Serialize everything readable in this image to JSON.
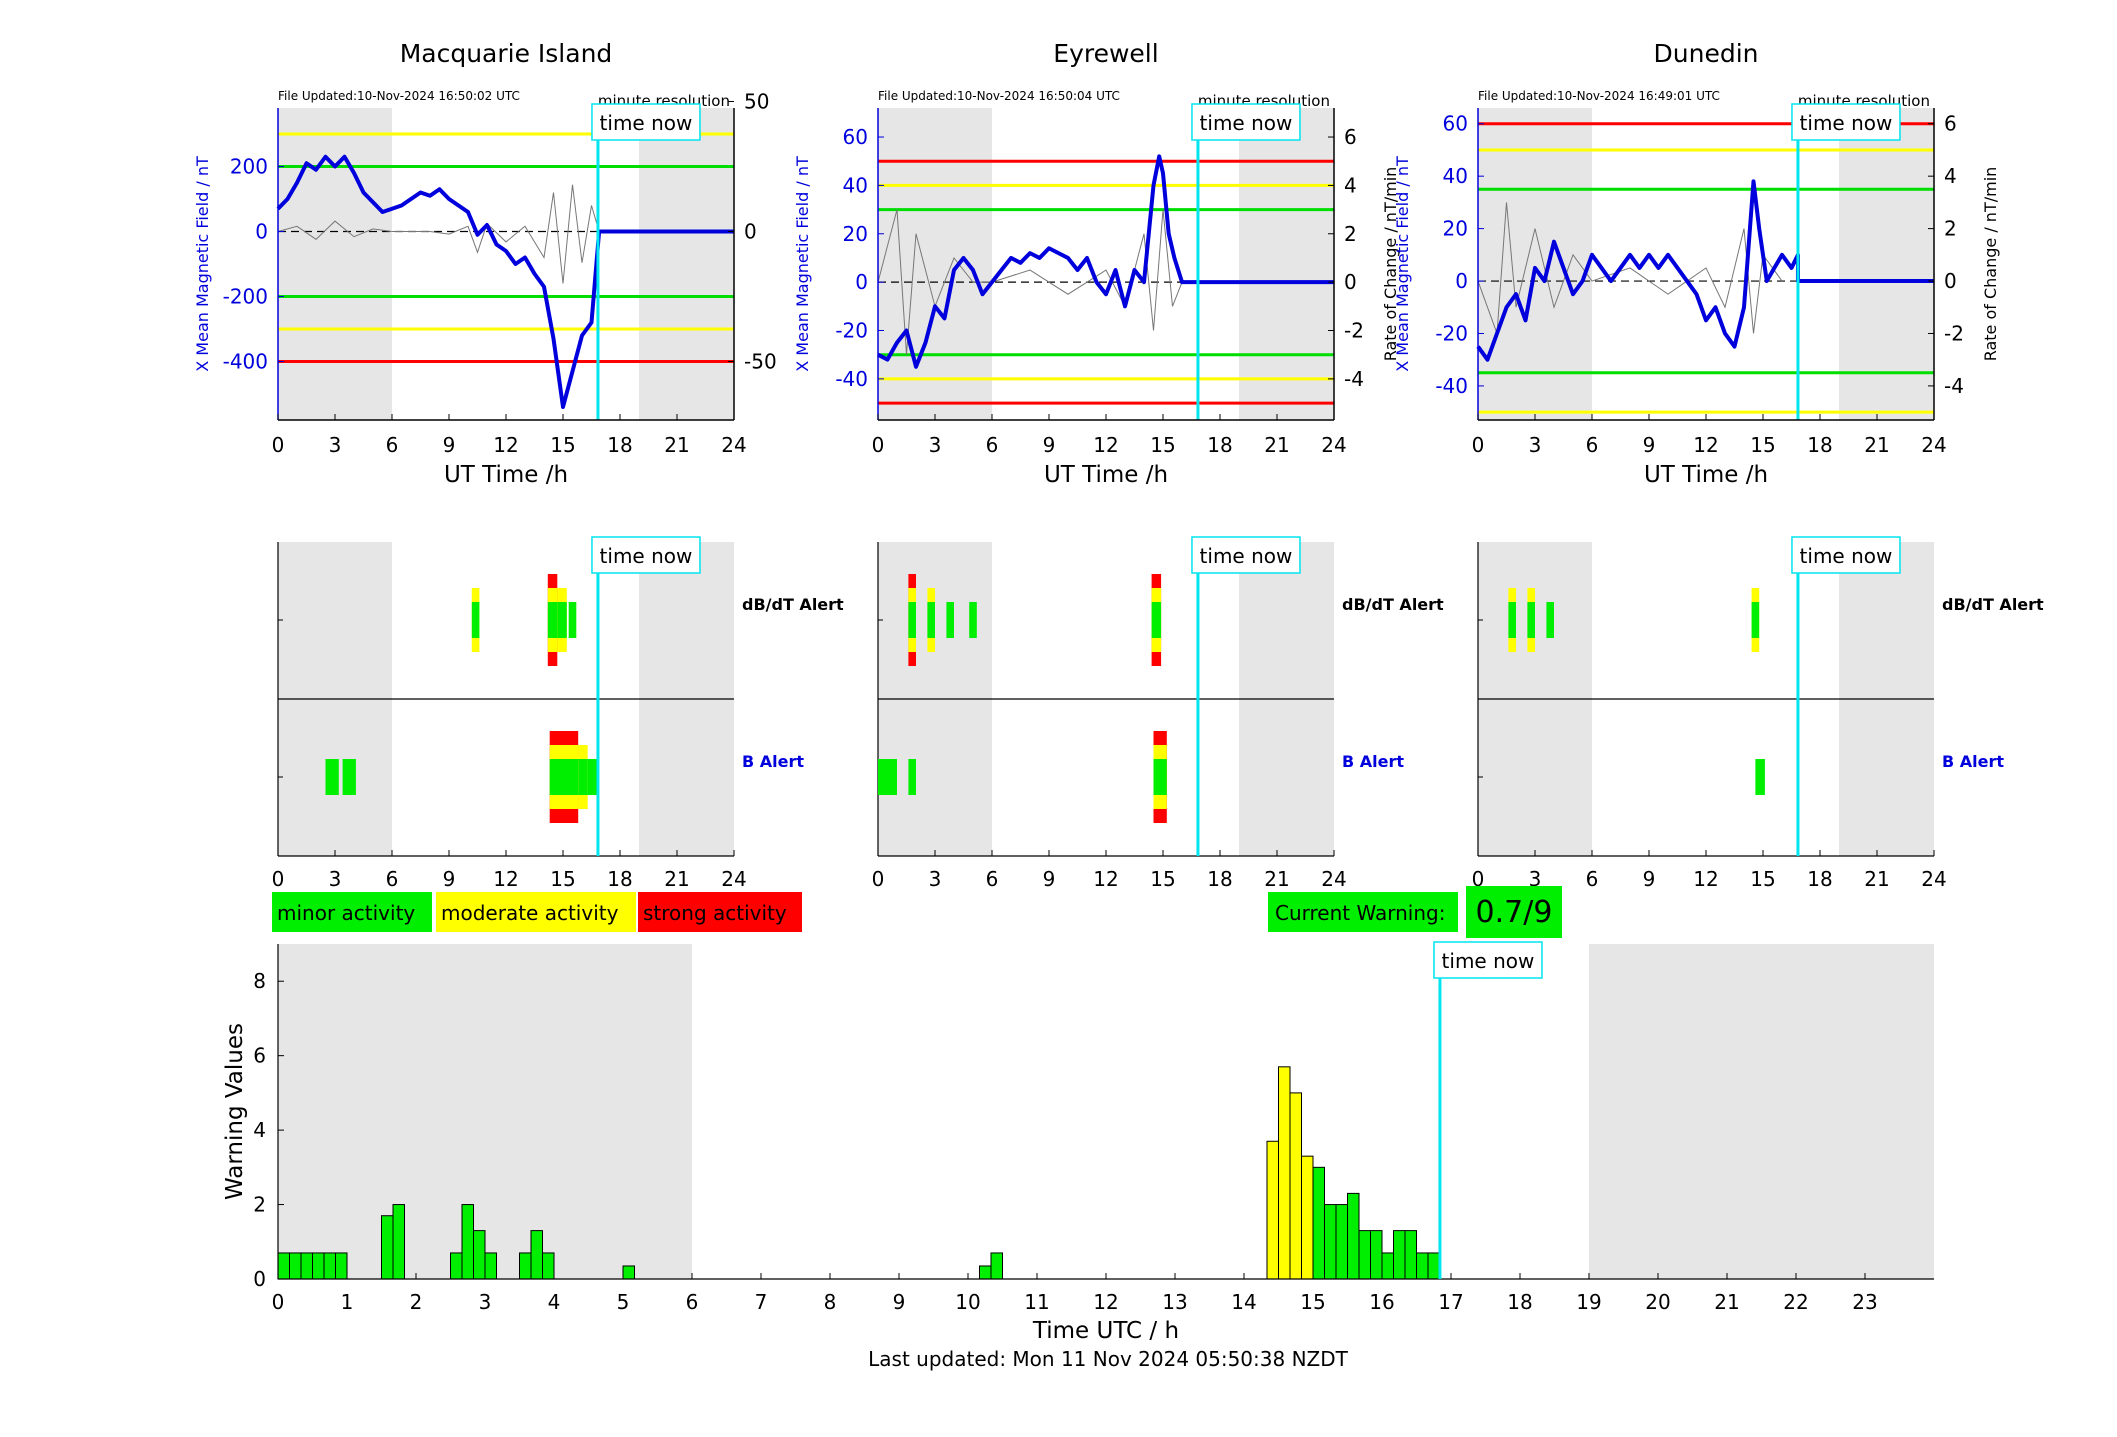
{
  "stations": [
    {
      "name": "Macquarie Island",
      "file_updated": "File Updated:10-Nov-2024 16:50:02 UTC",
      "minute_resolution_label": "minute resolution",
      "ylabel_left": "X Mean Magnetic Field / nT",
      "ylabel_right": "",
      "xlabel": "UT Time /h",
      "x_ticks": [
        0,
        3,
        6,
        9,
        12,
        15,
        18,
        21,
        24
      ],
      "left_ylim": [
        -580,
        380
      ],
      "left_ticks": [
        -400,
        -200,
        0,
        200
      ],
      "right_ylim": [
        -72.5,
        47.5
      ],
      "right_ticks": [
        -50,
        0,
        50
      ],
      "thresholds_left": [
        {
          "value": 300,
          "color": "#ffff00"
        },
        {
          "value": 200,
          "color": "#00dd00"
        },
        {
          "value": -200,
          "color": "#00dd00"
        },
        {
          "value": -300,
          "color": "#ffff00"
        },
        {
          "value": -400,
          "color": "#ff0000"
        }
      ],
      "night_shading": [
        [
          0,
          6
        ],
        [
          19,
          24
        ]
      ],
      "field_series": [
        [
          0,
          70
        ],
        [
          0.5,
          100
        ],
        [
          1,
          150
        ],
        [
          1.5,
          210
        ],
        [
          2,
          190
        ],
        [
          2.5,
          230
        ],
        [
          3,
          200
        ],
        [
          3.5,
          230
        ],
        [
          4,
          180
        ],
        [
          4.5,
          120
        ],
        [
          5,
          90
        ],
        [
          5.5,
          60
        ],
        [
          6,
          70
        ],
        [
          6.5,
          80
        ],
        [
          7,
          100
        ],
        [
          7.5,
          120
        ],
        [
          8,
          110
        ],
        [
          8.5,
          130
        ],
        [
          9,
          100
        ],
        [
          9.5,
          80
        ],
        [
          10,
          60
        ],
        [
          10.5,
          -10
        ],
        [
          11,
          20
        ],
        [
          11.5,
          -40
        ],
        [
          12,
          -60
        ],
        [
          12.5,
          -100
        ],
        [
          13,
          -80
        ],
        [
          13.5,
          -130
        ],
        [
          14,
          -170
        ],
        [
          14.5,
          -330
        ],
        [
          15,
          -540
        ],
        [
          15.5,
          -430
        ],
        [
          16,
          -320
        ],
        [
          16.5,
          -280
        ],
        [
          16.9,
          0
        ],
        [
          24,
          0
        ]
      ],
      "rate_series": [
        [
          0,
          0
        ],
        [
          1,
          2
        ],
        [
          2,
          -3
        ],
        [
          3,
          4
        ],
        [
          4,
          -2
        ],
        [
          5,
          1
        ],
        [
          6,
          0
        ],
        [
          7,
          0
        ],
        [
          8,
          0
        ],
        [
          9,
          -1
        ],
        [
          10,
          2
        ],
        [
          10.5,
          -8
        ],
        [
          11,
          3
        ],
        [
          12,
          -4
        ],
        [
          13,
          2
        ],
        [
          14,
          -10
        ],
        [
          14.5,
          15
        ],
        [
          15,
          -20
        ],
        [
          15.5,
          18
        ],
        [
          16,
          -12
        ],
        [
          16.5,
          10
        ],
        [
          16.9,
          0
        ]
      ],
      "time_now_hour": 16.84,
      "time_now_label": "time now",
      "alert_dbdt_label": "dB/dT Alert",
      "alert_b_label": "B Alert",
      "dbdt_blocks": [
        {
          "start": 10.2,
          "end": 10.6,
          "level": 2
        },
        {
          "start": 14.2,
          "end": 14.7,
          "level": 3
        },
        {
          "start": 14.7,
          "end": 15.2,
          "level": 2
        },
        {
          "start": 15.3,
          "end": 15.7,
          "level": 1
        }
      ],
      "b_blocks": [
        {
          "start": 2.5,
          "end": 3.2,
          "level": 1
        },
        {
          "start": 3.4,
          "end": 4.1,
          "level": 1
        },
        {
          "start": 14.3,
          "end": 15.8,
          "level": 3
        },
        {
          "start": 15.8,
          "end": 16.3,
          "level": 2
        },
        {
          "start": 16.3,
          "end": 16.84,
          "level": 1
        }
      ]
    },
    {
      "name": "Eyrewell",
      "file_updated": "File Updated:10-Nov-2024 16:50:04 UTC",
      "minute_resolution_label": "minute resolution",
      "ylabel_left": "X Mean Magnetic Field / nT",
      "ylabel_right": "Rate of Change / nT/min",
      "xlabel": "UT Time /h",
      "x_ticks": [
        0,
        3,
        6,
        9,
        12,
        15,
        18,
        21,
        24
      ],
      "left_ylim": [
        -57,
        72
      ],
      "left_ticks": [
        -40,
        -20,
        0,
        20,
        40,
        60
      ],
      "right_ylim": [
        -5.7,
        7.2
      ],
      "right_ticks": [
        -4,
        -2,
        0,
        2,
        4,
        6
      ],
      "thresholds_left": [
        {
          "value": 50,
          "color": "#ff0000"
        },
        {
          "value": 40,
          "color": "#ffff00"
        },
        {
          "value": 30,
          "color": "#00dd00"
        },
        {
          "value": -30,
          "color": "#00dd00"
        },
        {
          "value": -40,
          "color": "#ffff00"
        },
        {
          "value": -50,
          "color": "#ff0000"
        }
      ],
      "night_shading": [
        [
          0,
          6
        ],
        [
          19,
          24
        ]
      ],
      "field_series": [
        [
          0,
          -30
        ],
        [
          0.5,
          -32
        ],
        [
          1,
          -25
        ],
        [
          1.5,
          -20
        ],
        [
          2,
          -35
        ],
        [
          2.5,
          -25
        ],
        [
          3,
          -10
        ],
        [
          3.5,
          -15
        ],
        [
          4,
          5
        ],
        [
          4.5,
          10
        ],
        [
          5,
          5
        ],
        [
          5.5,
          -5
        ],
        [
          6,
          0
        ],
        [
          6.5,
          5
        ],
        [
          7,
          10
        ],
        [
          7.5,
          8
        ],
        [
          8,
          12
        ],
        [
          8.5,
          10
        ],
        [
          9,
          14
        ],
        [
          9.5,
          12
        ],
        [
          10,
          10
        ],
        [
          10.5,
          5
        ],
        [
          11,
          10
        ],
        [
          11.5,
          0
        ],
        [
          12,
          -5
        ],
        [
          12.5,
          5
        ],
        [
          13,
          -10
        ],
        [
          13.5,
          5
        ],
        [
          14,
          0
        ],
        [
          14.5,
          40
        ],
        [
          14.8,
          52
        ],
        [
          15,
          45
        ],
        [
          15.3,
          20
        ],
        [
          15.6,
          10
        ],
        [
          16,
          0
        ],
        [
          24,
          0
        ]
      ],
      "rate_series": [
        [
          0,
          0
        ],
        [
          1,
          3
        ],
        [
          1.5,
          -3
        ],
        [
          2,
          2
        ],
        [
          3,
          -1
        ],
        [
          4,
          1
        ],
        [
          5,
          0
        ],
        [
          6,
          0
        ],
        [
          8,
          0.5
        ],
        [
          10,
          -0.5
        ],
        [
          12,
          0.5
        ],
        [
          13,
          -1
        ],
        [
          14,
          2
        ],
        [
          14.5,
          -2
        ],
        [
          15,
          3
        ],
        [
          15.5,
          -1
        ],
        [
          16,
          0
        ]
      ],
      "time_now_hour": 16.84,
      "time_now_label": "time now",
      "alert_dbdt_label": "dB/dT Alert",
      "alert_b_label": "B Alert",
      "dbdt_blocks": [
        {
          "start": 1.6,
          "end": 2.0,
          "level": 3
        },
        {
          "start": 2.6,
          "end": 3.0,
          "level": 2
        },
        {
          "start": 3.6,
          "end": 4.0,
          "level": 1
        },
        {
          "start": 4.8,
          "end": 5.2,
          "level": 1
        },
        {
          "start": 14.4,
          "end": 14.9,
          "level": 3
        }
      ],
      "b_blocks": [
        {
          "start": 0.0,
          "end": 1.0,
          "level": 1
        },
        {
          "start": 1.6,
          "end": 2.0,
          "level": 1
        },
        {
          "start": 14.5,
          "end": 15.2,
          "level": 3
        }
      ]
    },
    {
      "name": "Dunedin",
      "file_updated": "File Updated:10-Nov-2024 16:49:01 UTC",
      "minute_resolution_label": "minute resolution",
      "ylabel_left": "X Mean Magnetic Field / nT",
      "ylabel_right": "Rate of Change / nT/min",
      "xlabel": "UT Time /h",
      "x_ticks": [
        0,
        3,
        6,
        9,
        12,
        15,
        18,
        21,
        24
      ],
      "left_ylim": [
        -53,
        66
      ],
      "left_ticks": [
        -40,
        -20,
        0,
        20,
        40,
        60
      ],
      "right_ylim": [
        -5.3,
        6.6
      ],
      "right_ticks": [
        -4,
        -2,
        0,
        2,
        4,
        6
      ],
      "thresholds_left": [
        {
          "value": 60,
          "color": "#ff0000"
        },
        {
          "value": 50,
          "color": "#ffff00"
        },
        {
          "value": 35,
          "color": "#00dd00"
        },
        {
          "value": -35,
          "color": "#00dd00"
        },
        {
          "value": -50,
          "color": "#ffff00"
        }
      ],
      "night_shading": [
        [
          0,
          6
        ],
        [
          19,
          24
        ]
      ],
      "field_series": [
        [
          0,
          -25
        ],
        [
          0.5,
          -30
        ],
        [
          1,
          -20
        ],
        [
          1.5,
          -10
        ],
        [
          2,
          -5
        ],
        [
          2.5,
          -15
        ],
        [
          3,
          5
        ],
        [
          3.5,
          0
        ],
        [
          4,
          15
        ],
        [
          4.5,
          5
        ],
        [
          5,
          -5
        ],
        [
          5.5,
          0
        ],
        [
          6,
          10
        ],
        [
          6.5,
          5
        ],
        [
          7,
          0
        ],
        [
          7.5,
          5
        ],
        [
          8,
          10
        ],
        [
          8.5,
          5
        ],
        [
          9,
          10
        ],
        [
          9.5,
          5
        ],
        [
          10,
          10
        ],
        [
          10.5,
          5
        ],
        [
          11,
          0
        ],
        [
          11.5,
          -5
        ],
        [
          12,
          -15
        ],
        [
          12.5,
          -10
        ],
        [
          13,
          -20
        ],
        [
          13.5,
          -25
        ],
        [
          14,
          -10
        ],
        [
          14.5,
          38
        ],
        [
          14.8,
          20
        ],
        [
          15.2,
          0
        ],
        [
          15.6,
          5
        ],
        [
          16,
          10
        ],
        [
          16.5,
          5
        ],
        [
          16.84,
          10
        ],
        [
          16.84,
          0
        ],
        [
          24,
          0
        ]
      ],
      "rate_series": [
        [
          0,
          0
        ],
        [
          1,
          -2
        ],
        [
          1.5,
          3
        ],
        [
          2,
          -1
        ],
        [
          3,
          2
        ],
        [
          4,
          -1
        ],
        [
          5,
          1
        ],
        [
          6,
          0
        ],
        [
          8,
          0.5
        ],
        [
          10,
          -0.5
        ],
        [
          12,
          0.5
        ],
        [
          13,
          -1
        ],
        [
          14,
          2
        ],
        [
          14.5,
          -2
        ],
        [
          15,
          1
        ],
        [
          16,
          0
        ]
      ],
      "time_now_hour": 16.84,
      "time_now_label": "time now",
      "alert_dbdt_label": "dB/dT Alert",
      "alert_b_label": "B Alert",
      "dbdt_blocks": [
        {
          "start": 1.6,
          "end": 2.0,
          "level": 2
        },
        {
          "start": 2.6,
          "end": 3.0,
          "level": 2
        },
        {
          "start": 3.6,
          "end": 4.0,
          "level": 1
        },
        {
          "start": 14.4,
          "end": 14.8,
          "level": 2
        }
      ],
      "b_blocks": [
        {
          "start": 14.6,
          "end": 15.1,
          "level": 1
        }
      ]
    }
  ],
  "legend": [
    {
      "label": "minor activity",
      "color": "#00ee00"
    },
    {
      "label": "moderate activity",
      "color": "#ffff00"
    },
    {
      "label": "strong activity",
      "color": "#ff0000"
    }
  ],
  "current_warning": {
    "label": "Current Warning:",
    "value": "0.7/9",
    "color": "#00ee00"
  },
  "chart_data": {
    "type": "bar",
    "xlabel": "Time UTC / h",
    "ylabel": "Warning Values",
    "xlim": [
      0,
      24
    ],
    "ylim": [
      0,
      9
    ],
    "x_ticks": [
      0,
      1,
      2,
      3,
      4,
      5,
      6,
      7,
      8,
      9,
      10,
      11,
      12,
      13,
      14,
      15,
      16,
      17,
      18,
      19,
      20,
      21,
      22,
      23
    ],
    "y_ticks": [
      0,
      2,
      4,
      6,
      8
    ],
    "night_shading": [
      [
        0,
        6
      ],
      [
        19,
        24
      ]
    ],
    "time_now_hour": 16.84,
    "time_now_label": "time now",
    "bar_width_h": 0.1667,
    "bars": [
      {
        "x": 0.0,
        "value": 0.7,
        "color": "#00ee00"
      },
      {
        "x": 0.1667,
        "value": 0.7,
        "color": "#00ee00"
      },
      {
        "x": 0.3333,
        "value": 0.7,
        "color": "#00ee00"
      },
      {
        "x": 0.5,
        "value": 0.7,
        "color": "#00ee00"
      },
      {
        "x": 0.6667,
        "value": 0.7,
        "color": "#00ee00"
      },
      {
        "x": 0.8333,
        "value": 0.7,
        "color": "#00ee00"
      },
      {
        "x": 1.5,
        "value": 1.7,
        "color": "#00ee00"
      },
      {
        "x": 1.6667,
        "value": 2.0,
        "color": "#00ee00"
      },
      {
        "x": 2.5,
        "value": 0.7,
        "color": "#00ee00"
      },
      {
        "x": 2.6667,
        "value": 2.0,
        "color": "#00ee00"
      },
      {
        "x": 2.8333,
        "value": 1.3,
        "color": "#00ee00"
      },
      {
        "x": 3.0,
        "value": 0.7,
        "color": "#00ee00"
      },
      {
        "x": 3.5,
        "value": 0.7,
        "color": "#00ee00"
      },
      {
        "x": 3.6667,
        "value": 1.3,
        "color": "#00ee00"
      },
      {
        "x": 3.8333,
        "value": 0.7,
        "color": "#00ee00"
      },
      {
        "x": 5.0,
        "value": 0.35,
        "color": "#00ee00"
      },
      {
        "x": 10.1667,
        "value": 0.35,
        "color": "#00ee00"
      },
      {
        "x": 10.3333,
        "value": 0.7,
        "color": "#00ee00"
      },
      {
        "x": 14.3333,
        "value": 3.7,
        "color": "#ffff00"
      },
      {
        "x": 14.5,
        "value": 5.7,
        "color": "#ffff00"
      },
      {
        "x": 14.6667,
        "value": 5.0,
        "color": "#ffff00"
      },
      {
        "x": 14.8333,
        "value": 3.3,
        "color": "#ffff00"
      },
      {
        "x": 15.0,
        "value": 3.0,
        "color": "#00ee00"
      },
      {
        "x": 15.1667,
        "value": 2.0,
        "color": "#00ee00"
      },
      {
        "x": 15.3333,
        "value": 2.0,
        "color": "#00ee00"
      },
      {
        "x": 15.5,
        "value": 2.3,
        "color": "#00ee00"
      },
      {
        "x": 15.6667,
        "value": 1.3,
        "color": "#00ee00"
      },
      {
        "x": 15.8333,
        "value": 1.3,
        "color": "#00ee00"
      },
      {
        "x": 16.0,
        "value": 0.7,
        "color": "#00ee00"
      },
      {
        "x": 16.1667,
        "value": 1.3,
        "color": "#00ee00"
      },
      {
        "x": 16.3333,
        "value": 1.3,
        "color": "#00ee00"
      },
      {
        "x": 16.5,
        "value": 0.7,
        "color": "#00ee00"
      },
      {
        "x": 16.6667,
        "value": 0.7,
        "color": "#00ee00"
      }
    ]
  },
  "footer": {
    "last_updated": "Last updated: Mon 11 Nov 2024 05:50:38 NZDT"
  }
}
